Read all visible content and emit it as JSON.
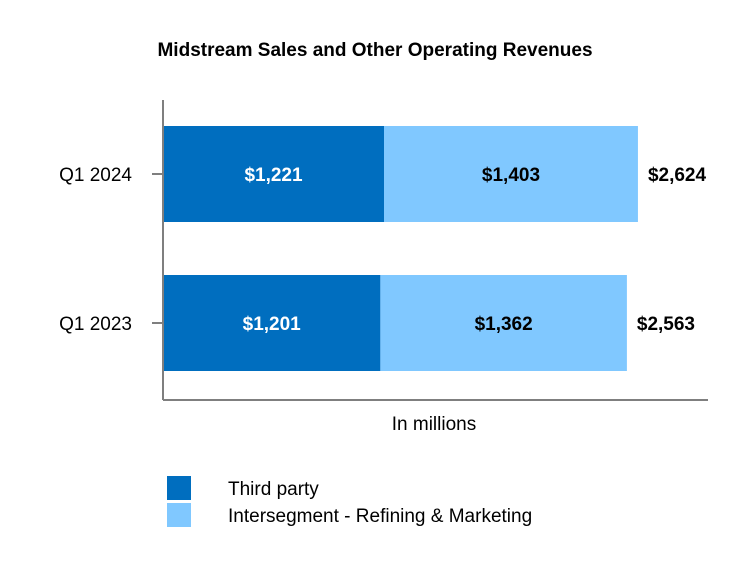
{
  "chart_data": {
    "type": "bar",
    "orientation": "horizontal",
    "stacked": true,
    "title": "Midstream Sales and Other Operating Revenues",
    "xlabel": "In millions",
    "ylabel": "",
    "xlim": [
      0,
      3000
    ],
    "grid": false,
    "legend_position": "bottom-left",
    "categories": [
      "Q1 2024",
      "Q1 2023"
    ],
    "series": [
      {
        "name": "Third party",
        "values": [
          1221,
          1201
        ],
        "labels": [
          "$1,221",
          "$1,201"
        ],
        "color": "#006EBF",
        "label_color": "#FFFFFF"
      },
      {
        "name": "Intersegment - Refining & Marketing",
        "values": [
          1403,
          1362
        ],
        "labels": [
          "$1,403",
          "$1,362"
        ],
        "color": "#80C8FF",
        "label_color": "#000000"
      }
    ],
    "totals": [
      "$2,624",
      "$2,563"
    ]
  }
}
